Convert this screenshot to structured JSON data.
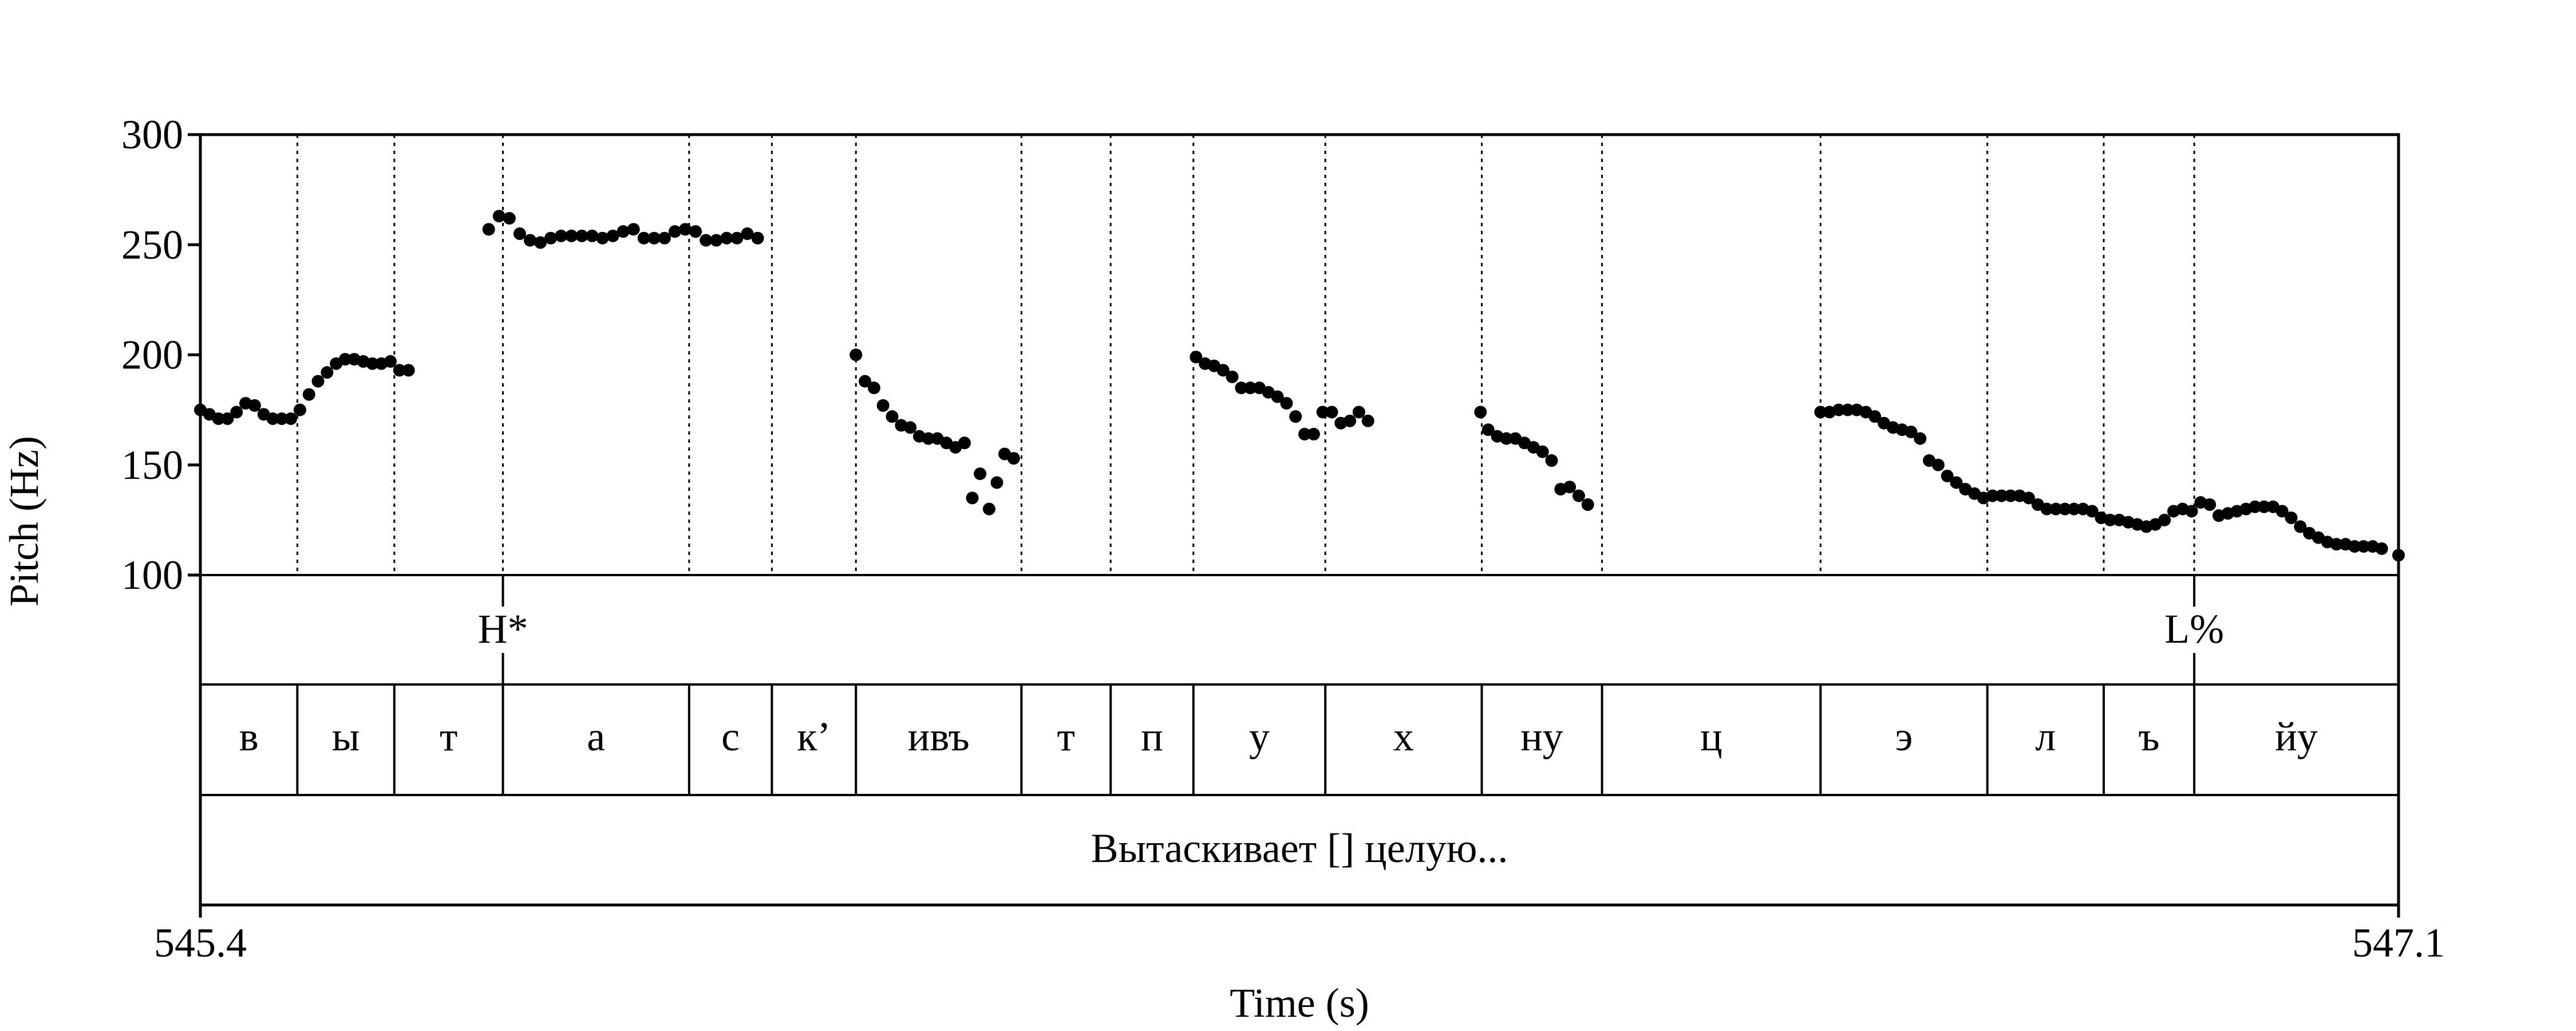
{
  "chart_data": {
    "type": "scatter",
    "xlabel": "Time (s)",
    "ylabel": "Pitch (Hz)",
    "xlim": [
      545.4,
      547.1
    ],
    "ylim": [
      100,
      300
    ],
    "x_ticks": [
      "545.4",
      "547.1"
    ],
    "y_ticks": [
      "100",
      "150",
      "200",
      "250",
      "300"
    ],
    "boundaries": [
      545.475,
      545.55,
      545.634,
      545.778,
      545.842,
      545.907,
      546.035,
      546.104,
      546.168,
      546.27,
      546.391,
      546.484,
      546.653,
      546.782,
      546.872,
      546.942
    ],
    "tones": [
      {
        "label": "H*",
        "time": 545.634
      },
      {
        "label": "L%",
        "time": 546.942
      }
    ],
    "segments": [
      {
        "label": "в",
        "start": 545.4,
        "end": 545.475
      },
      {
        "label": "ы",
        "start": 545.475,
        "end": 545.55
      },
      {
        "label": "т",
        "start": 545.55,
        "end": 545.634
      },
      {
        "label": "а",
        "start": 545.634,
        "end": 545.778
      },
      {
        "label": "с",
        "start": 545.778,
        "end": 545.842
      },
      {
        "label": "к’",
        "start": 545.842,
        "end": 545.907
      },
      {
        "label": "ивъ",
        "start": 545.907,
        "end": 546.035
      },
      {
        "label": "т",
        "start": 546.035,
        "end": 546.104
      },
      {
        "label": "п",
        "start": 546.104,
        "end": 546.168
      },
      {
        "label": "у",
        "start": 546.168,
        "end": 546.27
      },
      {
        "label": "х",
        "start": 546.27,
        "end": 546.391
      },
      {
        "label": "ну",
        "start": 546.391,
        "end": 546.484
      },
      {
        "label": "ц",
        "start": 546.484,
        "end": 546.653
      },
      {
        "label": "э",
        "start": 546.653,
        "end": 546.782
      },
      {
        "label": "л",
        "start": 546.782,
        "end": 546.872
      },
      {
        "label": "ъ",
        "start": 546.872,
        "end": 546.942
      },
      {
        "label": "йу",
        "start": 546.942,
        "end": 547.1
      }
    ],
    "phrase": "Вытаскивает [] целую...",
    "pitch_points": [
      [
        545.4,
        175
      ],
      [
        545.407,
        173
      ],
      [
        545.414,
        171
      ],
      [
        545.421,
        171
      ],
      [
        545.428,
        174
      ],
      [
        545.435,
        178
      ],
      [
        545.442,
        177
      ],
      [
        545.449,
        173
      ],
      [
        545.456,
        171
      ],
      [
        545.463,
        171
      ],
      [
        545.47,
        171
      ],
      [
        545.477,
        175
      ],
      [
        545.484,
        182
      ],
      [
        545.491,
        188
      ],
      [
        545.498,
        192
      ],
      [
        545.505,
        196
      ],
      [
        545.512,
        198
      ],
      [
        545.519,
        198
      ],
      [
        545.526,
        197
      ],
      [
        545.533,
        196
      ],
      [
        545.54,
        196
      ],
      [
        545.547,
        197
      ],
      [
        545.554,
        193
      ],
      [
        545.561,
        193
      ],
      [
        545.623,
        257
      ],
      [
        545.631,
        263
      ],
      [
        545.639,
        262
      ],
      [
        545.647,
        255
      ],
      [
        545.655,
        252
      ],
      [
        545.663,
        251
      ],
      [
        545.671,
        253
      ],
      [
        545.679,
        254
      ],
      [
        545.687,
        254
      ],
      [
        545.695,
        254
      ],
      [
        545.703,
        254
      ],
      [
        545.711,
        253
      ],
      [
        545.719,
        254
      ],
      [
        545.727,
        256
      ],
      [
        545.735,
        257
      ],
      [
        545.743,
        253
      ],
      [
        545.751,
        253
      ],
      [
        545.759,
        253
      ],
      [
        545.767,
        256
      ],
      [
        545.775,
        257
      ],
      [
        545.783,
        256
      ],
      [
        545.791,
        252
      ],
      [
        545.799,
        252
      ],
      [
        545.807,
        253
      ],
      [
        545.815,
        253
      ],
      [
        545.823,
        255
      ],
      [
        545.831,
        253
      ],
      [
        545.907,
        200
      ],
      [
        545.914,
        188
      ],
      [
        545.921,
        185
      ],
      [
        545.928,
        177
      ],
      [
        545.935,
        172
      ],
      [
        545.942,
        168
      ],
      [
        545.949,
        167
      ],
      [
        545.956,
        163
      ],
      [
        545.963,
        162
      ],
      [
        545.97,
        162
      ],
      [
        545.977,
        160
      ],
      [
        545.984,
        158
      ],
      [
        545.991,
        160
      ],
      [
        545.997,
        135
      ],
      [
        546.003,
        146
      ],
      [
        546.01,
        130
      ],
      [
        546.016,
        142
      ],
      [
        546.022,
        155
      ],
      [
        546.029,
        153
      ],
      [
        546.17,
        199
      ],
      [
        546.177,
        196
      ],
      [
        546.184,
        195
      ],
      [
        546.191,
        193
      ],
      [
        546.198,
        190
      ],
      [
        546.205,
        185
      ],
      [
        546.212,
        185
      ],
      [
        546.219,
        185
      ],
      [
        546.226,
        183
      ],
      [
        546.233,
        181
      ],
      [
        546.24,
        178
      ],
      [
        546.247,
        172
      ],
      [
        546.254,
        164
      ],
      [
        546.261,
        164
      ],
      [
        546.268,
        174
      ],
      [
        546.275,
        174
      ],
      [
        546.282,
        169
      ],
      [
        546.289,
        170
      ],
      [
        546.296,
        174
      ],
      [
        546.303,
        170
      ],
      [
        546.39,
        174
      ],
      [
        546.396,
        166
      ],
      [
        546.403,
        163
      ],
      [
        546.41,
        162
      ],
      [
        546.417,
        162
      ],
      [
        546.424,
        160
      ],
      [
        546.431,
        158
      ],
      [
        546.438,
        156
      ],
      [
        546.445,
        152
      ],
      [
        546.452,
        139
      ],
      [
        546.459,
        140
      ],
      [
        546.466,
        136
      ],
      [
        546.473,
        132
      ],
      [
        546.653,
        174
      ],
      [
        546.66,
        174
      ],
      [
        546.667,
        175
      ],
      [
        546.674,
        175
      ],
      [
        546.681,
        175
      ],
      [
        546.688,
        174
      ],
      [
        546.695,
        172
      ],
      [
        546.702,
        169
      ],
      [
        546.709,
        167
      ],
      [
        546.716,
        166
      ],
      [
        546.723,
        165
      ],
      [
        546.73,
        162
      ],
      [
        546.737,
        152
      ],
      [
        546.744,
        150
      ],
      [
        546.751,
        145
      ],
      [
        546.758,
        142
      ],
      [
        546.765,
        139
      ],
      [
        546.772,
        137
      ],
      [
        546.779,
        135
      ],
      [
        546.786,
        136
      ],
      [
        546.793,
        136
      ],
      [
        546.8,
        136
      ],
      [
        546.807,
        136
      ],
      [
        546.814,
        135
      ],
      [
        546.821,
        132
      ],
      [
        546.828,
        130
      ],
      [
        546.835,
        130
      ],
      [
        546.842,
        130
      ],
      [
        546.849,
        130
      ],
      [
        546.856,
        130
      ],
      [
        546.863,
        129
      ],
      [
        546.87,
        126
      ],
      [
        546.877,
        125
      ],
      [
        546.884,
        125
      ],
      [
        546.891,
        124
      ],
      [
        546.898,
        123
      ],
      [
        546.905,
        122
      ],
      [
        546.912,
        123
      ],
      [
        546.919,
        125
      ],
      [
        546.926,
        129
      ],
      [
        546.933,
        130
      ],
      [
        546.94,
        129
      ],
      [
        546.947,
        133
      ],
      [
        546.954,
        132
      ],
      [
        546.961,
        127
      ],
      [
        546.968,
        128
      ],
      [
        546.975,
        129
      ],
      [
        546.982,
        130
      ],
      [
        546.989,
        131
      ],
      [
        546.996,
        131
      ],
      [
        547.003,
        131
      ],
      [
        547.01,
        129
      ],
      [
        547.017,
        126
      ],
      [
        547.024,
        122
      ],
      [
        547.031,
        119
      ],
      [
        547.038,
        117
      ],
      [
        547.045,
        115
      ],
      [
        547.052,
        114
      ],
      [
        547.059,
        114
      ],
      [
        547.066,
        113
      ],
      [
        547.073,
        113
      ],
      [
        547.08,
        113
      ],
      [
        547.087,
        112
      ],
      [
        547.1,
        109
      ]
    ]
  }
}
